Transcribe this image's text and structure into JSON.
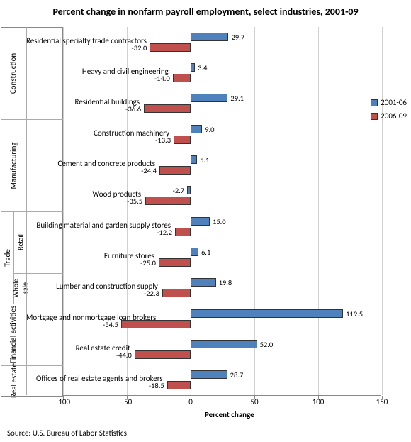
{
  "title": "Percent change in nonfarm payroll employment, select industries, 2001-09",
  "xlabel": "Percent change",
  "source": "Source: U.S. Bureau of Labor Statistics",
  "x_min": -100,
  "x_max": 150,
  "x_ticks": [
    -100,
    -50,
    0,
    50,
    100,
    150
  ],
  "series": [
    {
      "name": "2001-06",
      "color": "#4f81bd"
    },
    {
      "name": "2006-09",
      "color": "#c0504d"
    }
  ],
  "background_color": "#ffffff",
  "grid_color": "#d0d0d0",
  "rows": [
    {
      "label": "Residential specialty trade contractors",
      "v1": 29.7,
      "v2": -32.0,
      "sector": "Construction"
    },
    {
      "label": "Heavy and civil engineering",
      "v1": 3.4,
      "v2": -14.0,
      "sector": "Construction"
    },
    {
      "label": "Residential buildings",
      "v1": 29.1,
      "v2": -36.6,
      "sector": "Construction"
    },
    {
      "label": "Construction machinery",
      "v1": 9.0,
      "v2": -13.3,
      "sector": "Manufacturing"
    },
    {
      "label": "Cement and concrete products",
      "v1": 5.1,
      "v2": -24.4,
      "sector": "Manufacturing"
    },
    {
      "label": "Wood products",
      "v1": -2.7,
      "v2": -35.5,
      "sector": "Manufacturing"
    },
    {
      "label": "Building material and garden supply stores",
      "v1": 15.0,
      "v2": -12.2,
      "sector": "Trade",
      "subsector": "Retail"
    },
    {
      "label": "Furniture stores",
      "v1": 6.1,
      "v2": -25.0,
      "sector": "Trade",
      "subsector": "Retail"
    },
    {
      "label": "Lumber and construction supply",
      "v1": 19.8,
      "v2": -22.3,
      "sector": "Trade",
      "subsector": "Whole sale"
    },
    {
      "label": "Mortgage and nonmortgage loan brokers",
      "v1": 119.5,
      "v2": -54.5,
      "sector": "Financial activities"
    },
    {
      "label": "Real estate credit",
      "v1": 52.0,
      "v2": -44.0,
      "sector": "Financial activities"
    },
    {
      "label": "Offices of real estate agents and brokers",
      "v1": 28.7,
      "v2": -18.5,
      "sector": "Real estate"
    }
  ]
}
